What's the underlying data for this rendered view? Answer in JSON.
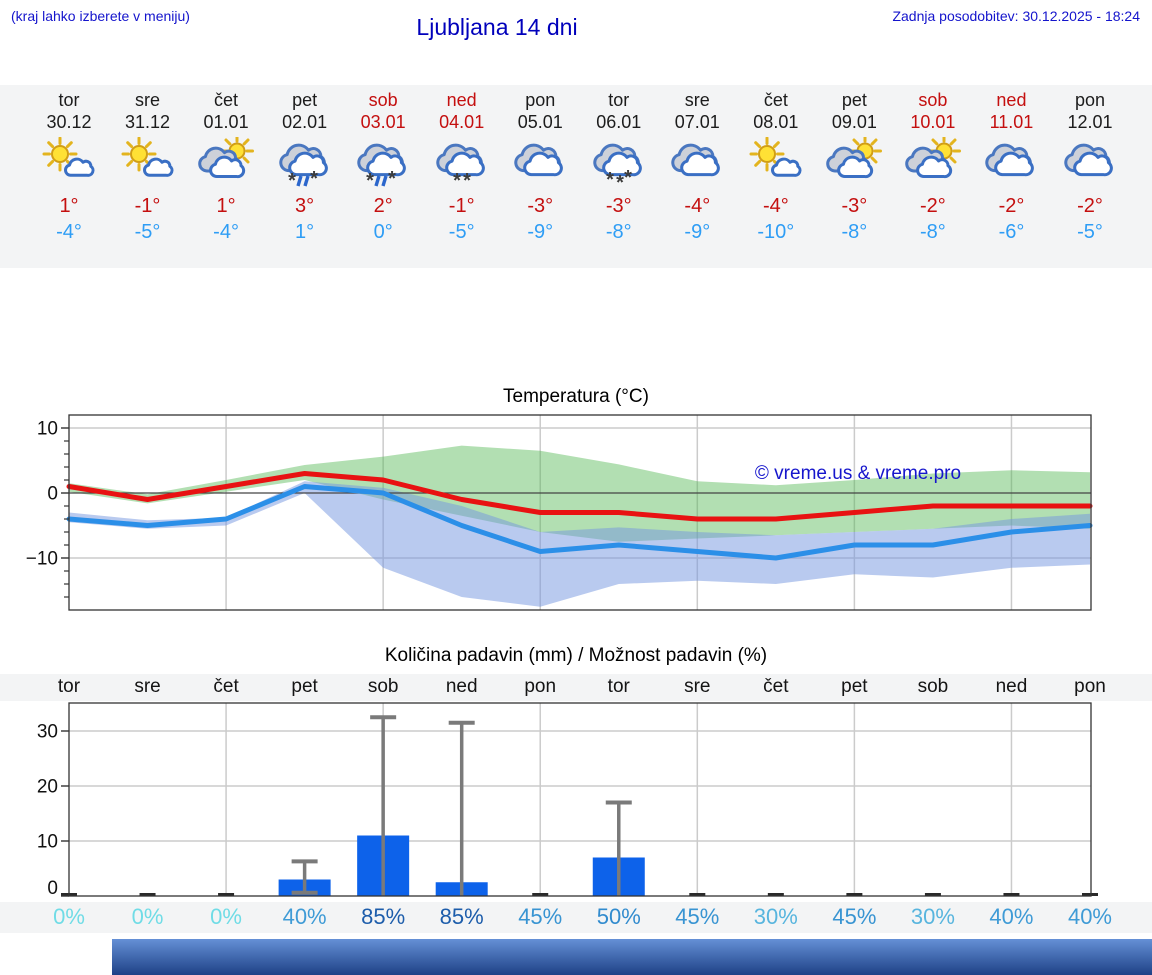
{
  "header": {
    "hint": "(kraj lahko izberete v meniju)",
    "title": "Ljubljana 14 dni",
    "updated": "Zadnja posodobitev: 30.12.2025 - 18:24"
  },
  "days": [
    {
      "name": "tor",
      "date": "30.12",
      "weekend": false,
      "icon": "mostly-sunny",
      "high": "1°",
      "low": "-4°",
      "pop": "0%"
    },
    {
      "name": "sre",
      "date": "31.12",
      "weekend": false,
      "icon": "mostly-sunny",
      "high": "-1°",
      "low": "-5°",
      "pop": "0%"
    },
    {
      "name": "čet",
      "date": "01.01",
      "weekend": false,
      "icon": "partly-cloudy",
      "high": "1°",
      "low": "-4°",
      "pop": "0%"
    },
    {
      "name": "pet",
      "date": "02.01",
      "weekend": false,
      "icon": "sleet",
      "high": "3°",
      "low": "1°",
      "pop": "40%"
    },
    {
      "name": "sob",
      "date": "03.01",
      "weekend": true,
      "icon": "sleet",
      "high": "2°",
      "low": "0°",
      "pop": "85%"
    },
    {
      "name": "ned",
      "date": "04.01",
      "weekend": true,
      "icon": "snow",
      "flakes": 2,
      "high": "-1°",
      "low": "-5°",
      "pop": "85%"
    },
    {
      "name": "pon",
      "date": "05.01",
      "weekend": false,
      "icon": "cloudy",
      "high": "-3°",
      "low": "-9°",
      "pop": "45%"
    },
    {
      "name": "tor",
      "date": "06.01",
      "weekend": false,
      "icon": "snow",
      "flakes": 3,
      "high": "-3°",
      "low": "-8°",
      "pop": "50%"
    },
    {
      "name": "sre",
      "date": "07.01",
      "weekend": false,
      "icon": "cloudy",
      "high": "-4°",
      "low": "-9°",
      "pop": "45%"
    },
    {
      "name": "čet",
      "date": "08.01",
      "weekend": false,
      "icon": "mostly-sunny",
      "high": "-4°",
      "low": "-10°",
      "pop": "30%"
    },
    {
      "name": "pet",
      "date": "09.01",
      "weekend": false,
      "icon": "partly-cloudy",
      "high": "-3°",
      "low": "-8°",
      "pop": "45%"
    },
    {
      "name": "sob",
      "date": "10.01",
      "weekend": true,
      "icon": "partly-cloudy",
      "high": "-2°",
      "low": "-8°",
      "pop": "30%"
    },
    {
      "name": "ned",
      "date": "11.01",
      "weekend": true,
      "icon": "cloudy",
      "high": "-2°",
      "low": "-6°",
      "pop": "40%"
    },
    {
      "name": "pon",
      "date": "12.01",
      "weekend": false,
      "icon": "cloudy",
      "high": "-2°",
      "low": "-5°",
      "pop": "40%"
    }
  ],
  "pop_colors": {
    "0%": "#70dce6",
    "30%": "#58b5de",
    "40%": "#3f9bd6",
    "45%": "#3894d2",
    "50%": "#318bce",
    "85%": "#1d5dab"
  },
  "colors": {
    "accent_blue_text": "#1414cc",
    "high_temp": "#c40f0f",
    "low_temp": "#2e9df5",
    "band_bg": "#f3f4f5",
    "banner_top": "#6590d6",
    "banner_bottom": "#1e4186"
  },
  "chart_data": [
    {
      "type": "line",
      "title": "Temperatura (°C)",
      "watermark": "© vreme.us & vreme.pro",
      "x_labels": [
        "tor 30.12",
        "sre 31.12",
        "čet 01.01",
        "pet 02.01",
        "sob 03.01",
        "ned 04.01",
        "pon 05.01",
        "tor 06.01",
        "sre 07.01",
        "čet 08.01",
        "pet 09.01",
        "sob 10.01",
        "ned 11.01",
        "pon 12.01"
      ],
      "ylim": [
        -18,
        12
      ],
      "yticks": [
        10,
        0,
        -10
      ],
      "grid": true,
      "series": [
        {
          "name": "max-temp",
          "color": "#e81212",
          "values": [
            1,
            -1,
            1,
            3,
            2,
            -1,
            -3,
            -3,
            -4,
            -4,
            -3,
            -2,
            -2,
            -2
          ]
        },
        {
          "name": "min-temp",
          "color": "#2b8fe8",
          "values": [
            -4,
            -5,
            -4,
            1,
            0,
            -5,
            -9,
            -8,
            -9,
            -10,
            -8,
            -8,
            -6,
            -5
          ]
        },
        {
          "name": "max-temp-range-upper",
          "color": "#55b855",
          "values": [
            1.5,
            -0.2,
            2,
            4.3,
            5.6,
            7.3,
            6.5,
            4.4,
            1.8,
            1.2,
            2,
            3,
            3.5,
            3.2
          ]
        },
        {
          "name": "max-temp-range-lower",
          "color": "#55b855",
          "values": [
            0.2,
            -1.6,
            0.2,
            2,
            -1,
            -3.5,
            -6,
            -7.5,
            -7,
            -6.5,
            -6,
            -5.5,
            -5,
            -5.5
          ]
        },
        {
          "name": "min-temp-range-upper",
          "color": "#7396e0",
          "values": [
            -3,
            -4.2,
            -3.8,
            1.8,
            0.8,
            -2,
            -6,
            -5.3,
            -6,
            -6.5,
            -6,
            -5.5,
            -4,
            -3.2
          ]
        },
        {
          "name": "min-temp-range-lower",
          "color": "#7396e0",
          "values": [
            -4.5,
            -5.5,
            -5,
            0,
            -11.5,
            -16,
            -17.5,
            -14,
            -13.5,
            -14,
            -12.5,
            -13,
            -11.5,
            -11
          ]
        }
      ]
    },
    {
      "type": "bar",
      "title": "Količina padavin (mm) / Možnost padavin (%)",
      "categories": [
        "tor",
        "sre",
        "čet",
        "pet",
        "sob",
        "ned",
        "pon",
        "tor",
        "sre",
        "čet",
        "pet",
        "sob",
        "ned",
        "pon"
      ],
      "values": [
        0,
        0,
        0,
        3,
        11,
        2.5,
        0,
        7,
        0,
        0,
        0,
        0,
        0,
        0
      ],
      "whisker_high": [
        0,
        0,
        0,
        6.3,
        32.5,
        31.5,
        0,
        17,
        0,
        0,
        0,
        0,
        0,
        0
      ],
      "whisker_low": [
        0,
        0,
        0,
        0.6,
        0,
        0,
        0,
        0,
        0,
        0,
        0,
        0,
        0,
        0
      ],
      "pop_percent": [
        0,
        0,
        0,
        40,
        85,
        85,
        45,
        50,
        45,
        30,
        45,
        30,
        40,
        40
      ],
      "ylim": [
        0,
        35
      ],
      "yticks": [
        0,
        10,
        20,
        30
      ],
      "grid": true,
      "bar_color": "#0d62ea",
      "whisker_color": "#7a7a7a"
    }
  ]
}
